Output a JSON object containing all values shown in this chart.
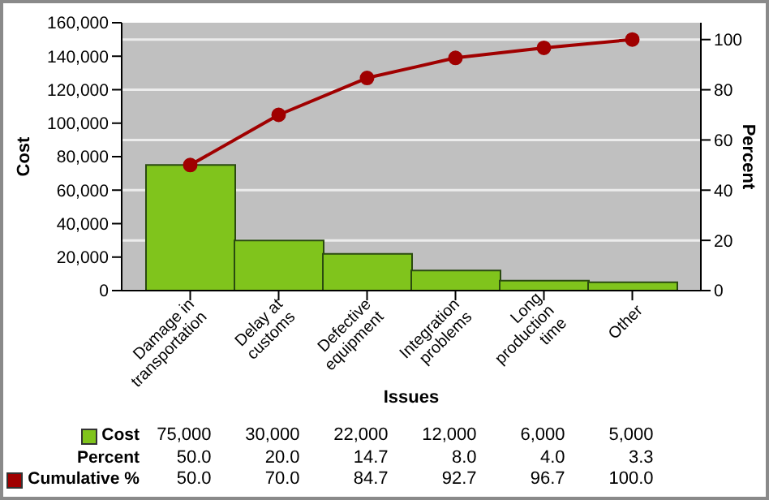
{
  "chart_data": {
    "type": "bar",
    "xlabel": "Issues",
    "ylabel": "Cost",
    "y2label": "Percent",
    "categories": [
      "Damage in\ntransportation",
      "Delay at\ncustoms",
      "Defective\nequipment",
      "Integration\nproblems",
      "Long\nproduction\ntime",
      "Other"
    ],
    "series": [
      {
        "name": "Cost",
        "color": "#80c41c",
        "values": [
          75000,
          30000,
          22000,
          12000,
          6000,
          5000
        ],
        "value_labels": [
          "75,000",
          "30,000",
          "22,000",
          "12,000",
          "6,000",
          "5,000"
        ]
      },
      {
        "name": "Cumulative %",
        "type": "line",
        "axis": "y2",
        "color": "#a00000",
        "values": [
          50.0,
          70.0,
          84.7,
          92.7,
          96.7,
          100.0
        ],
        "value_labels": [
          "50.0",
          "70.0",
          "84.7",
          "92.7",
          "96.7",
          "100.0"
        ]
      }
    ],
    "ylim": [
      0,
      160000
    ],
    "yticks": [
      0,
      {
        "value": 20000,
        "label": "20,000"
      },
      {
        "value": 40000,
        "label": "40,000"
      },
      {
        "value": 60000,
        "label": "60,000"
      },
      {
        "value": 80000,
        "label": "80,000"
      },
      {
        "value": 100000,
        "label": "100,000"
      },
      {
        "value": 120000,
        "label": "120,000"
      },
      {
        "value": 140000,
        "label": "140,000"
      },
      {
        "value": 160000,
        "label": "160,000"
      }
    ],
    "y2lim": [
      0,
      106.7
    ],
    "y2ticks": [
      0,
      20,
      40,
      60,
      80,
      100
    ],
    "grid": "y",
    "marker": "circle",
    "legend": "bottom left",
    "annotations": [
      "Percent",
      "50.0",
      "20.0",
      "14.7",
      "8.0",
      "4.0",
      "3.3"
    ]
  }
}
